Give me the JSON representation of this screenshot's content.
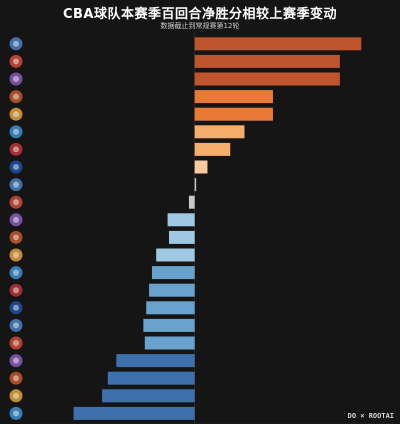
{
  "header": {
    "title": "CBA球队本赛季百回合净胜分相较上赛季变动",
    "subtitle": "数据截止到常规赛第12轮"
  },
  "footer": {
    "brand": "DO × ROOTAI"
  },
  "colors": {
    "background": "#151515",
    "positive_strong": "#c0542d",
    "positive_mid": "#e87a36",
    "positive_light": "#f4ad6a",
    "positive_pale": "#f7caa0",
    "neutral": "#c8c8c8",
    "negative_light": "#9fc8e2",
    "negative_mid": "#6aa2ce",
    "negative_strong": "#3e70ad"
  },
  "chart_data": {
    "type": "bar",
    "orientation": "horizontal",
    "title": "CBA球队本赛季百回合净胜分相较上赛季变动",
    "subtitle": "数据截止到常规赛第12轮",
    "xlabel": "",
    "ylabel": "",
    "xlim": [
      -11,
      14
    ],
    "xticks": [
      -11.0,
      -10.0,
      -9.0,
      -8.0,
      -7.0,
      -6.0,
      -5.0,
      -4.0,
      -3.0,
      -2.0,
      -1.0,
      0.0,
      1.0,
      2.0,
      3.0,
      4.0,
      5.0,
      6.0,
      7.0,
      8.0,
      9.0,
      10.0,
      11.0,
      12.0,
      13.0,
      14.0
    ],
    "xtick_labels": [
      "-11.0",
      "-10.0",
      "-9.0",
      "-8.0",
      "-7.0",
      "-6.0",
      "-5.0",
      "-4.0",
      "-3.0",
      "-2.0",
      "-1.0",
      "0.0",
      "1.0",
      "2.0",
      "3.0",
      "4.0",
      "5.0",
      "6.0",
      "7.0",
      "8.0",
      "9.0",
      "10.0",
      "11.0",
      "12.0",
      "13.0",
      "14.0"
    ],
    "grid": false,
    "legend": "none",
    "values": [
      11.7,
      10.2,
      10.2,
      5.5,
      5.5,
      3.5,
      2.5,
      0.9,
      0.1,
      -0.4,
      -1.9,
      -1.8,
      -2.7,
      -3.0,
      -3.2,
      -3.4,
      -3.6,
      -3.5,
      -5.5,
      -6.1,
      -6.5,
      -8.5
    ]
  }
}
